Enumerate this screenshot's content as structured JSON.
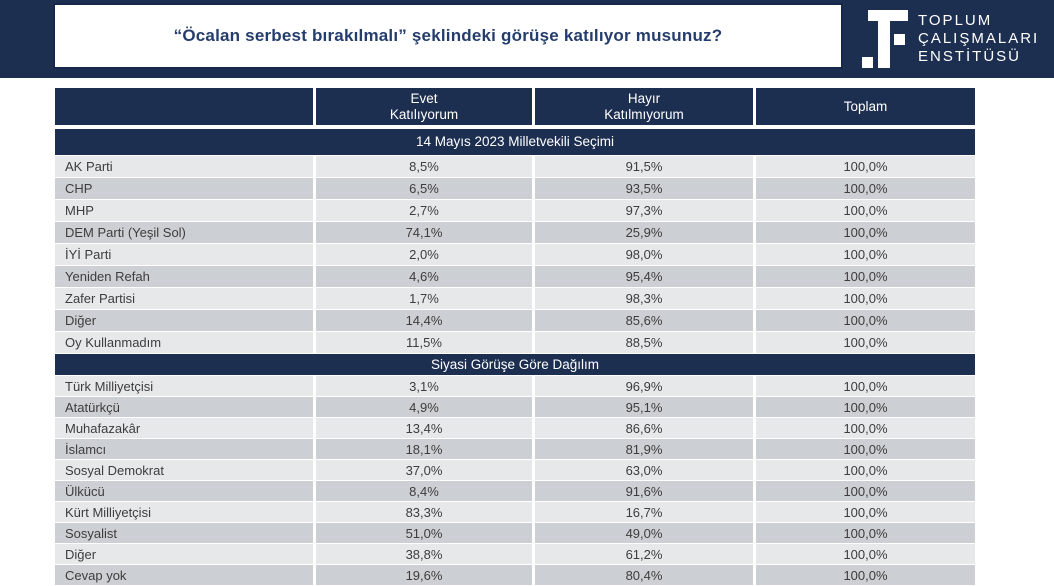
{
  "header": {
    "title": "“Öcalan serbest bırakılmalı” şeklindeki görüşe katılıyor musunuz?",
    "logo_lines": [
      "TOPLUM",
      "ÇALIŞMALARI",
      "ENSTİTÜSÜ"
    ]
  },
  "chart_data": {
    "type": "table",
    "title": "“Öcalan serbest bırakılmalı” şeklindeki görüşe katılıyor musunuz?",
    "columns": [
      "",
      "Evet\nKatılıyorum",
      "Hayır\nKatılmıyorum",
      "Toplam"
    ],
    "sections": [
      {
        "title": "14 Mayıs 2023 Milletvekili Seçimi",
        "rows": [
          [
            "AK Parti",
            "8,5%",
            "91,5%",
            "100,0%"
          ],
          [
            "CHP",
            "6,5%",
            "93,5%",
            "100,0%"
          ],
          [
            "MHP",
            "2,7%",
            "97,3%",
            "100,0%"
          ],
          [
            "DEM Parti (Yeşil Sol)",
            "74,1%",
            "25,9%",
            "100,0%"
          ],
          [
            "İYİ Parti",
            "2,0%",
            "98,0%",
            "100,0%"
          ],
          [
            "Yeniden Refah",
            "4,6%",
            "95,4%",
            "100,0%"
          ],
          [
            "Zafer Partisi",
            "1,7%",
            "98,3%",
            "100,0%"
          ],
          [
            "Diğer",
            "14,4%",
            "85,6%",
            "100,0%"
          ],
          [
            "Oy Kullanmadım",
            "11,5%",
            "88,5%",
            "100,0%"
          ]
        ]
      },
      {
        "title": "Siyasi Görüşe Göre Dağılım",
        "rows": [
          [
            "Türk Milliyetçisi",
            "3,1%",
            "96,9%",
            "100,0%"
          ],
          [
            "Atatürkçü",
            "4,9%",
            "95,1%",
            "100,0%"
          ],
          [
            "Muhafazakâr",
            "13,4%",
            "86,6%",
            "100,0%"
          ],
          [
            "İslamcı",
            "18,1%",
            "81,9%",
            "100,0%"
          ],
          [
            "Sosyal Demokrat",
            "37,0%",
            "63,0%",
            "100,0%"
          ],
          [
            "Ülkücü",
            "8,4%",
            "91,6%",
            "100,0%"
          ],
          [
            "Kürt Milliyetçisi",
            "83,3%",
            "16,7%",
            "100,0%"
          ],
          [
            "Sosyalist",
            "51,0%",
            "49,0%",
            "100,0%"
          ],
          [
            "Diğer",
            "38,8%",
            "61,2%",
            "100,0%"
          ],
          [
            "Cevap yok",
            "19,6%",
            "80,4%",
            "100,0%"
          ]
        ]
      }
    ]
  },
  "colors": {
    "navy": "#1d2f51",
    "navy_border": "#16274a",
    "title_text": "#253d6d",
    "row_light": "#e7e8ea",
    "row_dark": "#cccfd3",
    "row_text": "#3d3d3d"
  }
}
